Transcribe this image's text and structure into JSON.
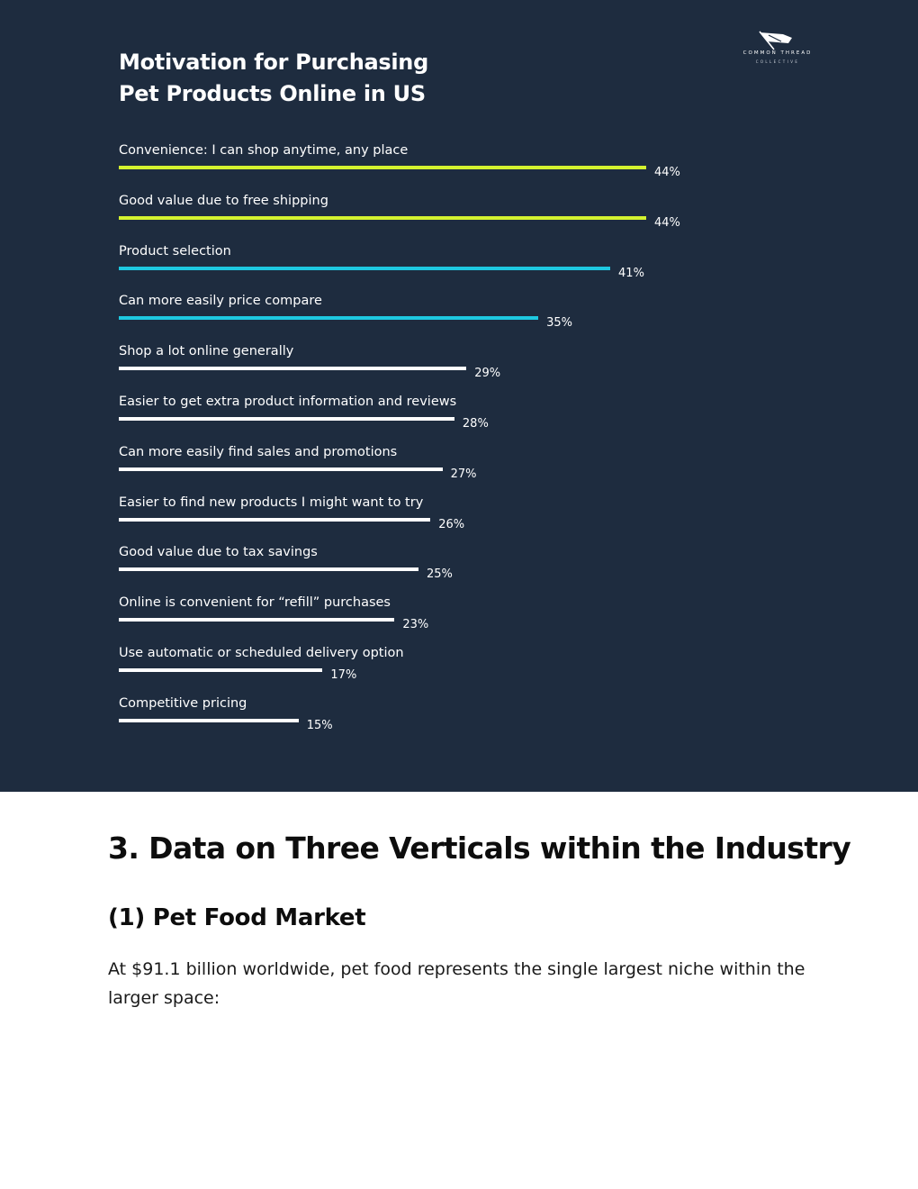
{
  "chart_data": {
    "type": "bar",
    "orientation": "horizontal",
    "title": "Motivation for Purchasing Pet Products Online in US",
    "categories": [
      "Convenience: I can shop anytime, any place",
      "Good value due to free shipping",
      "Product selection",
      "Can more easily price compare",
      "Shop a lot online generally",
      "Easier to get extra product information and reviews",
      "Can more easily find sales and promotions",
      "Easier to find new products I might want to try",
      "Good value due to tax savings",
      "Online is convenient for “refill” purchases",
      "Use automatic or scheduled delivery option",
      "Competitive pricing"
    ],
    "values": [
      44,
      44,
      41,
      35,
      29,
      28,
      27,
      26,
      25,
      23,
      17,
      15
    ],
    "value_labels": [
      "44%",
      "44%",
      "41%",
      "35%",
      "29%",
      "28%",
      "27%",
      "26%",
      "25%",
      "23%",
      "17%",
      "15%"
    ],
    "unit": "%",
    "bar_colors": [
      "#d4f22f",
      "#d4f22f",
      "#1ec8e0",
      "#1ec8e0",
      "#ffffff",
      "#ffffff",
      "#ffffff",
      "#ffffff",
      "#ffffff",
      "#ffffff",
      "#ffffff",
      "#ffffff"
    ],
    "xlim": [
      0,
      44
    ],
    "grid": false,
    "legend": "none"
  },
  "colors": {
    "panel_background": "#1e2c3f",
    "text_on_panel": "#ffffff",
    "accent_lime": "#d4f22f",
    "accent_cyan": "#1ec8e0"
  },
  "logo": {
    "icon": "flag-logo-icon",
    "brand": "COMMON THREAD",
    "sub": "COLLECTIVE"
  },
  "article": {
    "section_heading": "3. Data on Three Verticals within the Industry",
    "subheading": "(1) Pet Food Market",
    "paragraph": "At $91.1 billion worldwide, pet food represents the single largest niche within the larger space:"
  }
}
